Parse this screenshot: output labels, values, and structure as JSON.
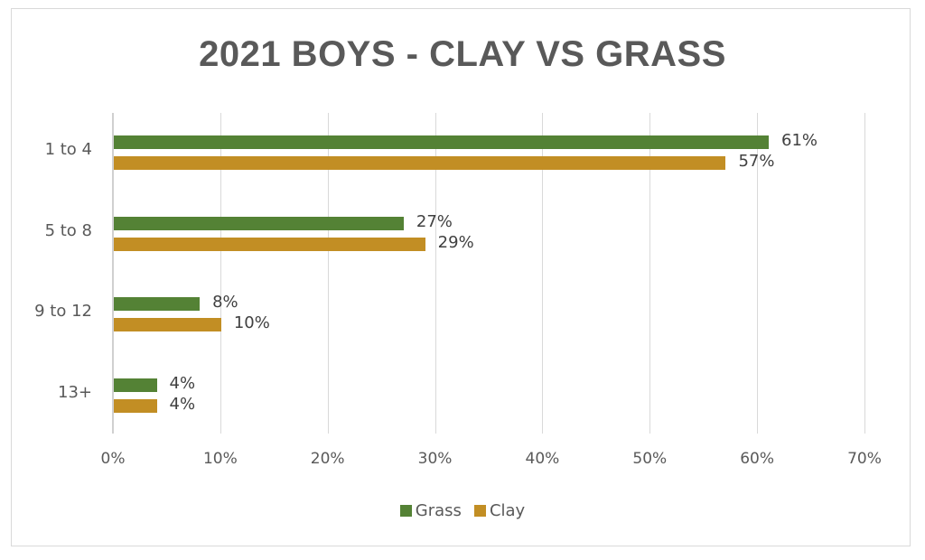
{
  "chart_data": {
    "type": "bar",
    "orientation": "horizontal",
    "title": "2021 BOYS - CLAY VS GRASS",
    "xlabel": "",
    "ylabel": "",
    "categories": [
      "1 to 4",
      "5 to 8",
      "9 to 12",
      "13+"
    ],
    "series": [
      {
        "name": "Grass",
        "color": "#548235",
        "values": [
          61,
          27,
          8,
          4
        ],
        "labels": [
          "61%",
          "27%",
          "8%",
          "4%"
        ]
      },
      {
        "name": "Clay",
        "color": "#c28e24",
        "values": [
          57,
          29,
          10,
          4
        ],
        "labels": [
          "57%",
          "29%",
          "10%",
          "4%"
        ]
      }
    ],
    "xlim": [
      0,
      70
    ],
    "x_ticks": [
      "0%",
      "10%",
      "20%",
      "30%",
      "40%",
      "50%",
      "60%",
      "70%"
    ],
    "grid": "vertical",
    "legend_position": "bottom"
  },
  "legend": {
    "grass": "Grass",
    "clay": "Clay"
  }
}
